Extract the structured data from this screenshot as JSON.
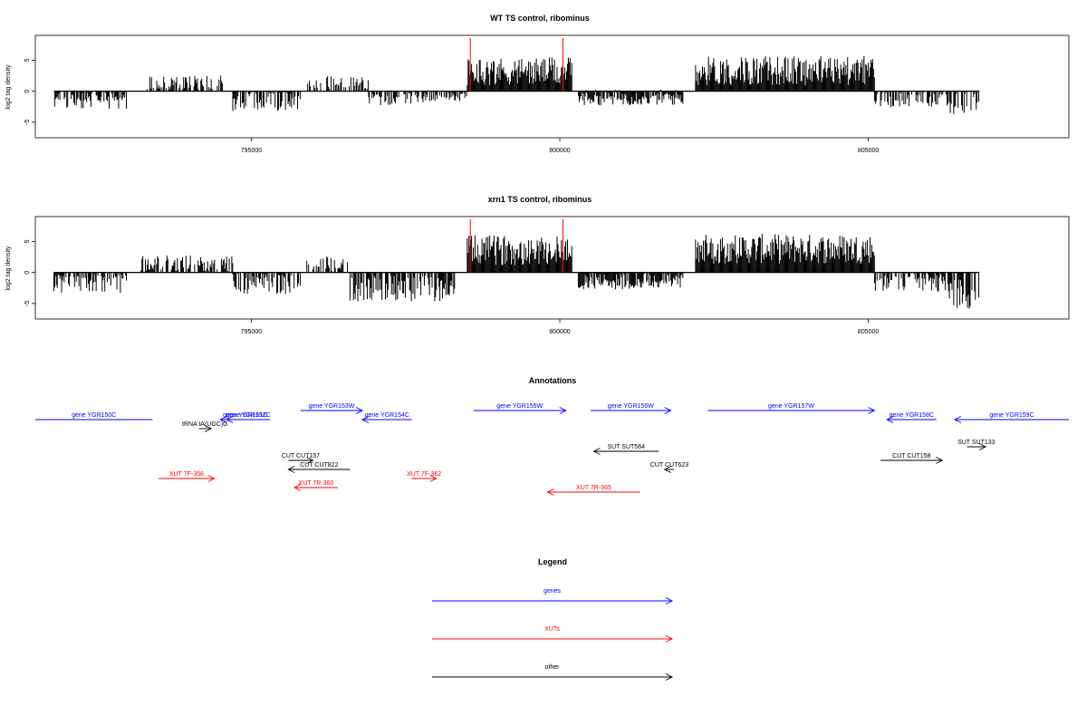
{
  "chart_data": [
    {
      "type": "bar",
      "title": "WT TS control, ribominus",
      "ylabel": "log2 tag density",
      "xlim": [
        791500,
        808250
      ],
      "ylim": [
        -7.5,
        9
      ],
      "xticks": [
        795000,
        800000,
        805000
      ],
      "yticks": [
        -5,
        0,
        5
      ],
      "highlight_x": [
        798550,
        800050
      ],
      "highlight_color": "#ff0000",
      "bar_color": "#000000",
      "segments": [
        {
          "x": [
            791800,
            793000
          ],
          "mean": -1.3,
          "spread": 1.0,
          "side": "neg"
        },
        {
          "x": [
            793300,
            794700
          ],
          "mean": 1.4,
          "spread": 0.7,
          "side": "pos"
        },
        {
          "x": [
            794700,
            795800
          ],
          "mean": -1.6,
          "spread": 1.0,
          "side": "neg"
        },
        {
          "x": [
            795900,
            796900
          ],
          "mean": 1.2,
          "spread": 0.8,
          "side": "pos"
        },
        {
          "x": [
            796900,
            798000
          ],
          "mean": -1.0,
          "spread": 0.8,
          "side": "neg"
        },
        {
          "x": [
            798000,
            798500
          ],
          "mean": -0.9,
          "spread": 0.5,
          "side": "neg"
        },
        {
          "x": [
            798500,
            800200
          ],
          "mean": 3.2,
          "spread": 1.4,
          "side": "pos"
        },
        {
          "x": [
            800300,
            802000
          ],
          "mean": -1.0,
          "spread": 0.8,
          "side": "mix"
        },
        {
          "x": [
            802200,
            805100
          ],
          "mean": 3.3,
          "spread": 1.5,
          "side": "pos"
        },
        {
          "x": [
            805100,
            806300
          ],
          "mean": -1.2,
          "spread": 0.9,
          "side": "neg"
        },
        {
          "x": [
            806300,
            806800
          ],
          "mean": -2.4,
          "spread": 1.4,
          "side": "neg"
        }
      ]
    },
    {
      "type": "bar",
      "title": "xrn1 TS control, ribominus",
      "ylabel": "log2 tag density",
      "xlim": [
        791500,
        808250
      ],
      "ylim": [
        -7.5,
        9
      ],
      "xticks": [
        795000,
        800000,
        805000
      ],
      "yticks": [
        -5,
        0,
        5
      ],
      "highlight_x": [
        798550,
        800050
      ],
      "highlight_color": "#ff0000",
      "bar_color": "#000000",
      "segments": [
        {
          "x": [
            791800,
            793000
          ],
          "mean": -1.6,
          "spread": 1.2,
          "side": "neg"
        },
        {
          "x": [
            793200,
            794700
          ],
          "mean": 1.5,
          "spread": 0.8,
          "side": "pos"
        },
        {
          "x": [
            794700,
            795800
          ],
          "mean": -1.8,
          "spread": 1.1,
          "side": "neg"
        },
        {
          "x": [
            795900,
            796600
          ],
          "mean": 1.3,
          "spread": 0.8,
          "side": "pos"
        },
        {
          "x": [
            796600,
            798300
          ],
          "mean": -2.6,
          "spread": 1.3,
          "side": "neg"
        },
        {
          "x": [
            798500,
            800200
          ],
          "mean": 3.6,
          "spread": 1.5,
          "side": "pos"
        },
        {
          "x": [
            800300,
            802000
          ],
          "mean": -1.3,
          "spread": 0.9,
          "side": "mix"
        },
        {
          "x": [
            802200,
            805100
          ],
          "mean": 3.8,
          "spread": 1.5,
          "side": "pos"
        },
        {
          "x": [
            805100,
            806300
          ],
          "mean": -1.5,
          "spread": 1.0,
          "side": "neg"
        },
        {
          "x": [
            806300,
            806800
          ],
          "mean": -3.3,
          "spread": 1.6,
          "side": "neg"
        }
      ]
    }
  ],
  "annotations": {
    "title": "Annotations",
    "xlim": [
      791500,
      808250
    ],
    "features": [
      {
        "label": "gene YGR150C",
        "x0": 791500,
        "x1": 793400,
        "dir": "rev",
        "color": "#0000ff",
        "row": 0,
        "arrow": false
      },
      {
        "label": "gene YGR151C",
        "x0": 794500,
        "x1": 795300,
        "dir": "rev",
        "color": "#0000ff",
        "row": 0,
        "arrow": true
      },
      {
        "label": "gene YGR152C",
        "x0": 794600,
        "x1": 795300,
        "dir": "rev",
        "color": "#0000ff",
        "row": 0,
        "arrow": true
      },
      {
        "label": "gene YGR153W",
        "x0": 795800,
        "x1": 796800,
        "dir": "fwd",
        "color": "#0000ff",
        "row": -1,
        "arrow": true
      },
      {
        "label": "gene YGR154C",
        "x0": 796800,
        "x1": 797600,
        "dir": "rev",
        "color": "#0000ff",
        "row": 0,
        "arrow": true
      },
      {
        "label": "gene YGR155W",
        "x0": 798600,
        "x1": 800100,
        "dir": "fwd",
        "color": "#0000ff",
        "row": -1,
        "arrow": true
      },
      {
        "label": "gene YGR156W",
        "x0": 800500,
        "x1": 801800,
        "dir": "fwd",
        "color": "#0000ff",
        "row": -1,
        "arrow": true
      },
      {
        "label": "gene YGR157W",
        "x0": 802400,
        "x1": 805100,
        "dir": "fwd",
        "color": "#0000ff",
        "row": -1,
        "arrow": true
      },
      {
        "label": "gene YGR158C",
        "x0": 805300,
        "x1": 806100,
        "dir": "rev",
        "color": "#0000ff",
        "row": 0,
        "arrow": true
      },
      {
        "label": "gene YGR159C",
        "x0": 806400,
        "x1": 808250,
        "dir": "rev",
        "color": "#0000ff",
        "row": 0,
        "arrow": true
      },
      {
        "label": "tRNA tA(UGC)G",
        "x0": 794150,
        "x1": 794350,
        "dir": "fwd",
        "color": "#000000",
        "row": 1,
        "arrow": true
      },
      {
        "label": "SUT SUT564",
        "x0": 800550,
        "x1": 801600,
        "dir": "rev",
        "color": "#000000",
        "row": 3.5,
        "arrow": true
      },
      {
        "label": "SUT SUT133",
        "x0": 806600,
        "x1": 806900,
        "dir": "fwd",
        "color": "#000000",
        "row": 3,
        "arrow": true
      },
      {
        "label": "CUT CUT157",
        "x0": 795600,
        "x1": 796000,
        "dir": "fwd",
        "color": "#000000",
        "row": 4.5,
        "arrow": true
      },
      {
        "label": "CUT CUT822",
        "x0": 795600,
        "x1": 796600,
        "dir": "rev",
        "color": "#000000",
        "row": 5.5,
        "arrow": true
      },
      {
        "label": "CUT CUT158",
        "x0": 805200,
        "x1": 806200,
        "dir": "fwd",
        "color": "#000000",
        "row": 4.5,
        "arrow": true
      },
      {
        "label": "CUT CUT623",
        "x0": 801700,
        "x1": 801850,
        "dir": "rev",
        "color": "#000000",
        "row": 5.5,
        "arrow": true
      },
      {
        "label": "XUT 7F-358",
        "x0": 793500,
        "x1": 794400,
        "dir": "fwd",
        "color": "#ff0000",
        "row": 6.5,
        "arrow": true
      },
      {
        "label": "XUT 7R-360",
        "x0": 795700,
        "x1": 796400,
        "dir": "rev",
        "color": "#ff0000",
        "row": 7.5,
        "arrow": true
      },
      {
        "label": "XUT 7F-362",
        "x0": 797600,
        "x1": 798000,
        "dir": "fwd",
        "color": "#ff0000",
        "row": 6.5,
        "arrow": true
      },
      {
        "label": "XUT 7R-365",
        "x0": 799800,
        "x1": 801300,
        "dir": "rev",
        "color": "#ff0000",
        "row": 8,
        "arrow": true
      }
    ]
  },
  "legend": {
    "title": "Legend",
    "entries": [
      {
        "label": "genes",
        "color": "#0000ff"
      },
      {
        "label": "XUTs",
        "color": "#ff0000"
      },
      {
        "label": "other",
        "color": "#000000"
      }
    ]
  }
}
